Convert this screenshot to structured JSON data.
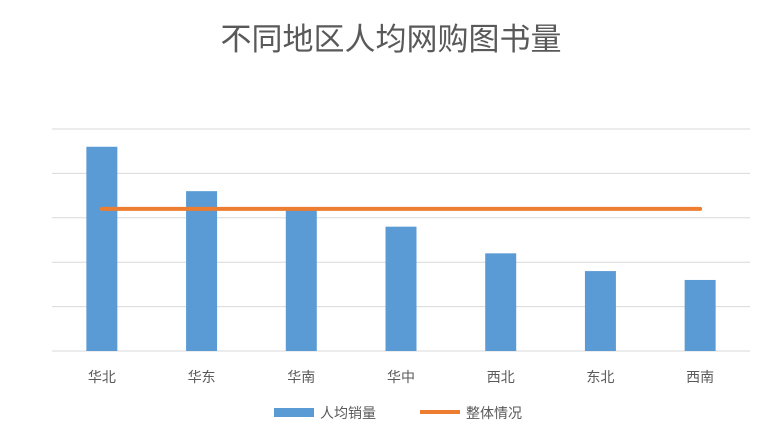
{
  "chart_data": {
    "type": "bar",
    "title": "不同地区人均网购图书量",
    "categories": [
      "华北",
      "华东",
      "华南",
      "华中",
      "西北",
      "东北",
      "西南"
    ],
    "series": [
      {
        "name": "人均销量",
        "type": "bar",
        "color": "#5b9bd5",
        "values": [
          4.6,
          3.6,
          3.2,
          2.8,
          2.2,
          1.8,
          1.6
        ]
      },
      {
        "name": "整体情况",
        "type": "line",
        "color": "#ed7d31",
        "values": [
          3.2,
          3.2,
          3.2,
          3.2,
          3.2,
          3.2,
          3.2
        ]
      }
    ],
    "ylim": [
      0,
      5
    ],
    "y_tick_labels_shown": false,
    "grid": true,
    "legend": "bottom"
  }
}
